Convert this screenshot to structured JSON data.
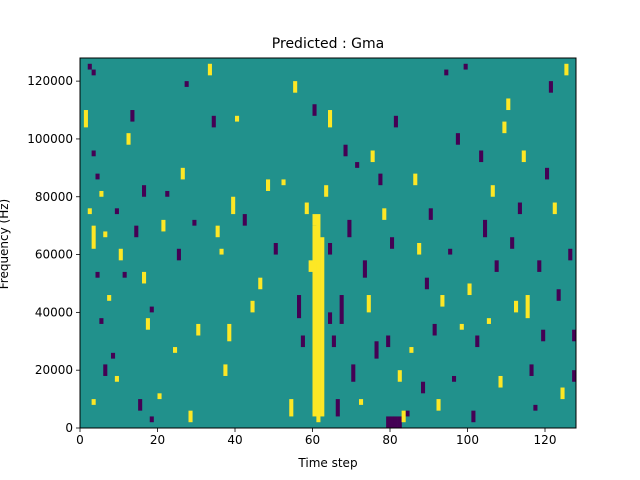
{
  "chart_data": {
    "type": "heatmap",
    "title": "Predicted : Gma",
    "xlabel": "Time step",
    "ylabel": "Frequency (Hz)",
    "xlim": [
      0,
      128
    ],
    "ylim": [
      0,
      128000
    ],
    "x_ticks": [
      {
        "value": 0,
        "label": "0"
      },
      {
        "value": 20,
        "label": "20"
      },
      {
        "value": 40,
        "label": "40"
      },
      {
        "value": 60,
        "label": "60"
      },
      {
        "value": 80,
        "label": "80"
      },
      {
        "value": 100,
        "label": "100"
      },
      {
        "value": 120,
        "label": "120"
      }
    ],
    "y_ticks": [
      {
        "value": 0,
        "label": "0"
      },
      {
        "value": 20000,
        "label": "20000"
      },
      {
        "value": 40000,
        "label": "40000"
      },
      {
        "value": 60000,
        "label": "60000"
      },
      {
        "value": 80000,
        "label": "80000"
      },
      {
        "value": 100000,
        "label": "100000"
      },
      {
        "value": 120000,
        "label": "120000"
      }
    ],
    "rows": 64,
    "levels": {
      "low": -1,
      "mid": 0,
      "high": 1
    },
    "colors": {
      "low": "#440154",
      "mid": "#21918c",
      "high": "#fde725"
    },
    "background_level": 0,
    "grid": false,
    "legend": "none",
    "cells": [
      {
        "x": 2,
        "y0": 124000,
        "y1": 126000,
        "v": -1
      },
      {
        "x": 3,
        "y0": 122000,
        "y1": 124000,
        "v": -1
      },
      {
        "x": 1,
        "y0": 104000,
        "y1": 110000,
        "v": 1
      },
      {
        "x": 3,
        "y0": 94000,
        "y1": 96000,
        "v": -1
      },
      {
        "x": 4,
        "y0": 86000,
        "y1": 88000,
        "v": -1
      },
      {
        "x": 2,
        "y0": 74000,
        "y1": 76000,
        "v": 1
      },
      {
        "x": 3,
        "y0": 62000,
        "y1": 70000,
        "v": 1
      },
      {
        "x": 4,
        "y0": 52000,
        "y1": 54000,
        "v": -1
      },
      {
        "x": 5,
        "y0": 36000,
        "y1": 38000,
        "v": -1
      },
      {
        "x": 6,
        "y0": 18000,
        "y1": 22000,
        "v": -1
      },
      {
        "x": 3,
        "y0": 8000,
        "y1": 10000,
        "v": 1
      },
      {
        "x": 5,
        "y0": 80000,
        "y1": 82000,
        "v": 1
      },
      {
        "x": 6,
        "y0": 66000,
        "y1": 68000,
        "v": 1
      },
      {
        "x": 7,
        "y0": 44000,
        "y1": 46000,
        "v": 1
      },
      {
        "x": 8,
        "y0": 24000,
        "y1": 26000,
        "v": -1
      },
      {
        "x": 9,
        "y0": 16000,
        "y1": 18000,
        "v": 1
      },
      {
        "x": 9,
        "y0": 74000,
        "y1": 76000,
        "v": -1
      },
      {
        "x": 10,
        "y0": 58000,
        "y1": 62000,
        "v": 1
      },
      {
        "x": 11,
        "y0": 52000,
        "y1": 54000,
        "v": -1
      },
      {
        "x": 12,
        "y0": 98000,
        "y1": 102000,
        "v": 1
      },
      {
        "x": 13,
        "y0": 106000,
        "y1": 110000,
        "v": -1
      },
      {
        "x": 14,
        "y0": 66000,
        "y1": 70000,
        "v": -1
      },
      {
        "x": 16,
        "y0": 80000,
        "y1": 84000,
        "v": -1
      },
      {
        "x": 16,
        "y0": 50000,
        "y1": 54000,
        "v": 1
      },
      {
        "x": 17,
        "y0": 34000,
        "y1": 38000,
        "v": 1
      },
      {
        "x": 15,
        "y0": 6000,
        "y1": 10000,
        "v": -1
      },
      {
        "x": 18,
        "y0": 2000,
        "y1": 4000,
        "v": -1
      },
      {
        "x": 18,
        "y0": 40000,
        "y1": 42000,
        "v": -1
      },
      {
        "x": 20,
        "y0": 10000,
        "y1": 12000,
        "v": 1
      },
      {
        "x": 21,
        "y0": 68000,
        "y1": 72000,
        "v": 1
      },
      {
        "x": 22,
        "y0": 80000,
        "y1": 82000,
        "v": -1
      },
      {
        "x": 24,
        "y0": 26000,
        "y1": 28000,
        "v": 1
      },
      {
        "x": 25,
        "y0": 58000,
        "y1": 62000,
        "v": -1
      },
      {
        "x": 26,
        "y0": 86000,
        "y1": 90000,
        "v": 1
      },
      {
        "x": 27,
        "y0": 118000,
        "y1": 120000,
        "v": -1
      },
      {
        "x": 28,
        "y0": 2000,
        "y1": 6000,
        "v": 1
      },
      {
        "x": 29,
        "y0": 70000,
        "y1": 72000,
        "v": -1
      },
      {
        "x": 30,
        "y0": 32000,
        "y1": 36000,
        "v": 1
      },
      {
        "x": 33,
        "y0": 122000,
        "y1": 126000,
        "v": 1
      },
      {
        "x": 34,
        "y0": 104000,
        "y1": 108000,
        "v": -1
      },
      {
        "x": 35,
        "y0": 66000,
        "y1": 70000,
        "v": 1
      },
      {
        "x": 36,
        "y0": 60000,
        "y1": 62000,
        "v": 1
      },
      {
        "x": 37,
        "y0": 18000,
        "y1": 22000,
        "v": 1
      },
      {
        "x": 38,
        "y0": 30000,
        "y1": 36000,
        "v": 1
      },
      {
        "x": 39,
        "y0": 74000,
        "y1": 80000,
        "v": 1
      },
      {
        "x": 40,
        "y0": 106000,
        "y1": 108000,
        "v": 1
      },
      {
        "x": 42,
        "y0": 70000,
        "y1": 74000,
        "v": -1
      },
      {
        "x": 44,
        "y0": 40000,
        "y1": 44000,
        "v": 1
      },
      {
        "x": 46,
        "y0": 48000,
        "y1": 52000,
        "v": 1
      },
      {
        "x": 48,
        "y0": 82000,
        "y1": 86000,
        "v": 1
      },
      {
        "x": 50,
        "y0": 60000,
        "y1": 64000,
        "v": -1
      },
      {
        "x": 52,
        "y0": 84000,
        "y1": 86000,
        "v": 1
      },
      {
        "x": 54,
        "y0": 4000,
        "y1": 10000,
        "v": 1
      },
      {
        "x": 55,
        "y0": 116000,
        "y1": 120000,
        "v": 1
      },
      {
        "x": 56,
        "y0": 38000,
        "y1": 46000,
        "v": -1
      },
      {
        "x": 57,
        "y0": 28000,
        "y1": 32000,
        "v": -1
      },
      {
        "x": 58,
        "y0": 74000,
        "y1": 78000,
        "v": 1
      },
      {
        "x": 59,
        "y0": 54000,
        "y1": 58000,
        "v": 1
      },
      {
        "x": 60,
        "y0": 108000,
        "y1": 112000,
        "v": -1
      },
      {
        "x": 64,
        "y0": 104000,
        "y1": 110000,
        "v": 1
      },
      {
        "x": 63,
        "y0": 80000,
        "y1": 84000,
        "v": 1
      },
      {
        "x": 64,
        "y0": 60000,
        "y1": 64000,
        "v": -1
      },
      {
        "x": 65,
        "y0": 28000,
        "y1": 32000,
        "v": -1
      },
      {
        "x": 66,
        "y0": 4000,
        "y1": 10000,
        "v": -1
      },
      {
        "x": 67,
        "y0": 36000,
        "y1": 46000,
        "v": -1
      },
      {
        "x": 68,
        "y0": 94000,
        "y1": 98000,
        "v": -1
      },
      {
        "x": 69,
        "y0": 66000,
        "y1": 72000,
        "v": -1
      },
      {
        "x": 70,
        "y0": 16000,
        "y1": 22000,
        "v": -1
      },
      {
        "x": 71,
        "y0": 90000,
        "y1": 92000,
        "v": -1
      },
      {
        "x": 72,
        "y0": 8000,
        "y1": 10000,
        "v": 1
      },
      {
        "x": 73,
        "y0": 52000,
        "y1": 58000,
        "v": -1
      },
      {
        "x": 74,
        "y0": 40000,
        "y1": 46000,
        "v": 1
      },
      {
        "x": 75,
        "y0": 92000,
        "y1": 96000,
        "v": 1
      },
      {
        "x": 76,
        "y0": 24000,
        "y1": 30000,
        "v": -1
      },
      {
        "x": 77,
        "y0": 84000,
        "y1": 88000,
        "v": -1
      },
      {
        "x": 78,
        "y0": 72000,
        "y1": 76000,
        "v": 1
      },
      {
        "x": 79,
        "y0": 28000,
        "y1": 32000,
        "v": -1
      },
      {
        "x": 80,
        "y0": 62000,
        "y1": 66000,
        "v": -1
      },
      {
        "x": 81,
        "y0": 104000,
        "y1": 108000,
        "v": -1
      },
      {
        "x": 82,
        "y0": 16000,
        "y1": 20000,
        "v": 1
      },
      {
        "x": 84,
        "y0": 4000,
        "y1": 6000,
        "v": -1
      },
      {
        "x": 85,
        "y0": 26000,
        "y1": 28000,
        "v": 1
      },
      {
        "x": 86,
        "y0": 84000,
        "y1": 88000,
        "v": 1
      },
      {
        "x": 87,
        "y0": 60000,
        "y1": 64000,
        "v": 1
      },
      {
        "x": 88,
        "y0": 12000,
        "y1": 16000,
        "v": -1
      },
      {
        "x": 89,
        "y0": 48000,
        "y1": 52000,
        "v": -1
      },
      {
        "x": 90,
        "y0": 72000,
        "y1": 76000,
        "v": -1
      },
      {
        "x": 91,
        "y0": 32000,
        "y1": 36000,
        "v": -1
      },
      {
        "x": 92,
        "y0": 6000,
        "y1": 10000,
        "v": 1
      },
      {
        "x": 93,
        "y0": 42000,
        "y1": 46000,
        "v": 1
      },
      {
        "x": 94,
        "y0": 122000,
        "y1": 124000,
        "v": -1
      },
      {
        "x": 95,
        "y0": 60000,
        "y1": 62000,
        "v": -1
      },
      {
        "x": 96,
        "y0": 16000,
        "y1": 18000,
        "v": -1
      },
      {
        "x": 97,
        "y0": 98000,
        "y1": 102000,
        "v": -1
      },
      {
        "x": 98,
        "y0": 34000,
        "y1": 36000,
        "v": 1
      },
      {
        "x": 99,
        "y0": 124000,
        "y1": 126000,
        "v": -1
      },
      {
        "x": 100,
        "y0": 46000,
        "y1": 50000,
        "v": 1
      },
      {
        "x": 101,
        "y0": 2000,
        "y1": 6000,
        "v": -1
      },
      {
        "x": 102,
        "y0": 28000,
        "y1": 32000,
        "v": -1
      },
      {
        "x": 103,
        "y0": 92000,
        "y1": 96000,
        "v": -1
      },
      {
        "x": 104,
        "y0": 66000,
        "y1": 72000,
        "v": -1
      },
      {
        "x": 105,
        "y0": 36000,
        "y1": 38000,
        "v": 1
      },
      {
        "x": 106,
        "y0": 80000,
        "y1": 84000,
        "v": 1
      },
      {
        "x": 107,
        "y0": 54000,
        "y1": 58000,
        "v": -1
      },
      {
        "x": 108,
        "y0": 14000,
        "y1": 18000,
        "v": 1
      },
      {
        "x": 109,
        "y0": 102000,
        "y1": 106000,
        "v": 1
      },
      {
        "x": 110,
        "y0": 110000,
        "y1": 114000,
        "v": 1
      },
      {
        "x": 111,
        "y0": 62000,
        "y1": 66000,
        "v": -1
      },
      {
        "x": 112,
        "y0": 40000,
        "y1": 44000,
        "v": 1
      },
      {
        "x": 113,
        "y0": 74000,
        "y1": 78000,
        "v": -1
      },
      {
        "x": 114,
        "y0": 92000,
        "y1": 96000,
        "v": 1
      },
      {
        "x": 115,
        "y0": 38000,
        "y1": 46000,
        "v": 1
      },
      {
        "x": 116,
        "y0": 18000,
        "y1": 22000,
        "v": -1
      },
      {
        "x": 117,
        "y0": 6000,
        "y1": 8000,
        "v": -1
      },
      {
        "x": 118,
        "y0": 54000,
        "y1": 58000,
        "v": -1
      },
      {
        "x": 119,
        "y0": 30000,
        "y1": 34000,
        "v": -1
      },
      {
        "x": 120,
        "y0": 86000,
        "y1": 90000,
        "v": -1
      },
      {
        "x": 121,
        "y0": 116000,
        "y1": 120000,
        "v": -1
      },
      {
        "x": 122,
        "y0": 74000,
        "y1": 78000,
        "v": 1
      },
      {
        "x": 123,
        "y0": 44000,
        "y1": 48000,
        "v": -1
      },
      {
        "x": 124,
        "y0": 10000,
        "y1": 14000,
        "v": 1
      },
      {
        "x": 125,
        "y0": 122000,
        "y1": 126000,
        "v": 1
      },
      {
        "x": 126,
        "y0": 58000,
        "y1": 62000,
        "v": -1
      },
      {
        "x": 127,
        "y0": 30000,
        "y1": 34000,
        "v": -1
      },
      {
        "x": 127,
        "y0": 16000,
        "y1": 20000,
        "v": -1
      },
      {
        "x": 60,
        "y0": 4000,
        "y1": 70000,
        "v": 1
      },
      {
        "x": 61,
        "y0": 2000,
        "y1": 74000,
        "v": 1
      },
      {
        "x": 62,
        "y0": 4000,
        "y1": 66000,
        "v": 1
      },
      {
        "x": 60,
        "y0": 70000,
        "y1": 74000,
        "v": 1
      },
      {
        "x": 79,
        "y0": 0,
        "y1": 4000,
        "v": -1
      },
      {
        "x": 80,
        "y0": 0,
        "y1": 4000,
        "v": -1
      },
      {
        "x": 81,
        "y0": 0,
        "y1": 4000,
        "v": -1
      },
      {
        "x": 82,
        "y0": 0,
        "y1": 4000,
        "v": -1
      },
      {
        "x": 83,
        "y0": 2000,
        "y1": 6000,
        "v": 1
      },
      {
        "x": 64,
        "y0": 36000,
        "y1": 40000,
        "v": -1
      }
    ]
  }
}
